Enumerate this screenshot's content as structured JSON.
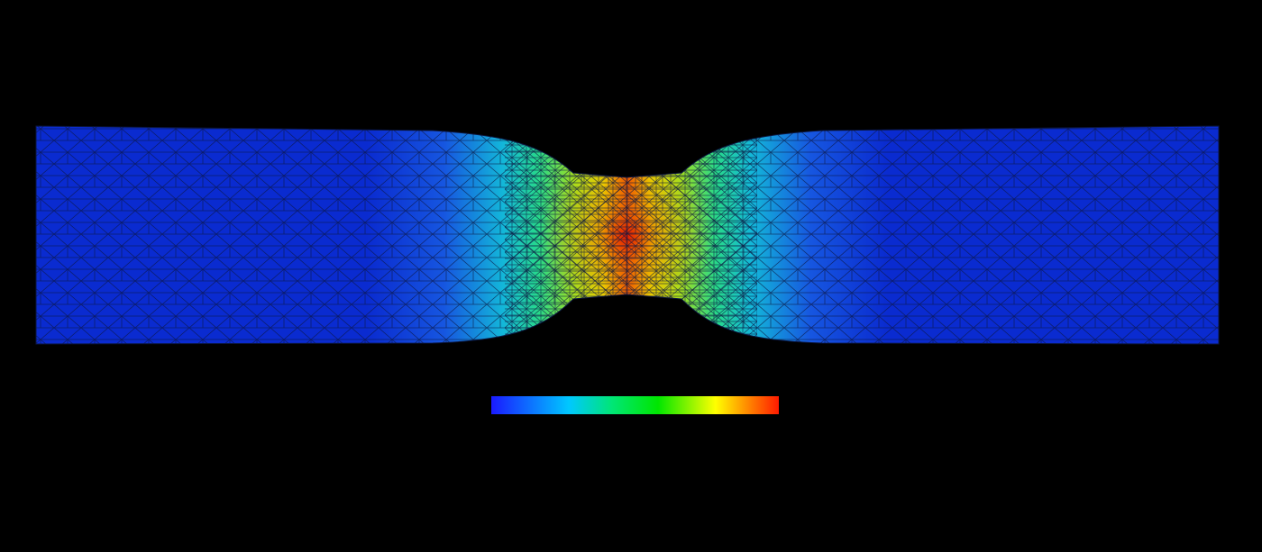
{
  "viewport": {
    "background": "#000000"
  },
  "specimen": {
    "description_icon": "necking-tensile-specimen",
    "mesh": "triangular",
    "mesh_line_color": "#0b1640"
  },
  "colormap": {
    "name": "jet",
    "stops": [
      "#1a1aff",
      "#00c8ff",
      "#00e676",
      "#00e600",
      "#ffff00",
      "#ff8000",
      "#ff1a00"
    ]
  },
  "field": {
    "min_color": "#0a2bd0",
    "max_color": "#e11a00"
  }
}
